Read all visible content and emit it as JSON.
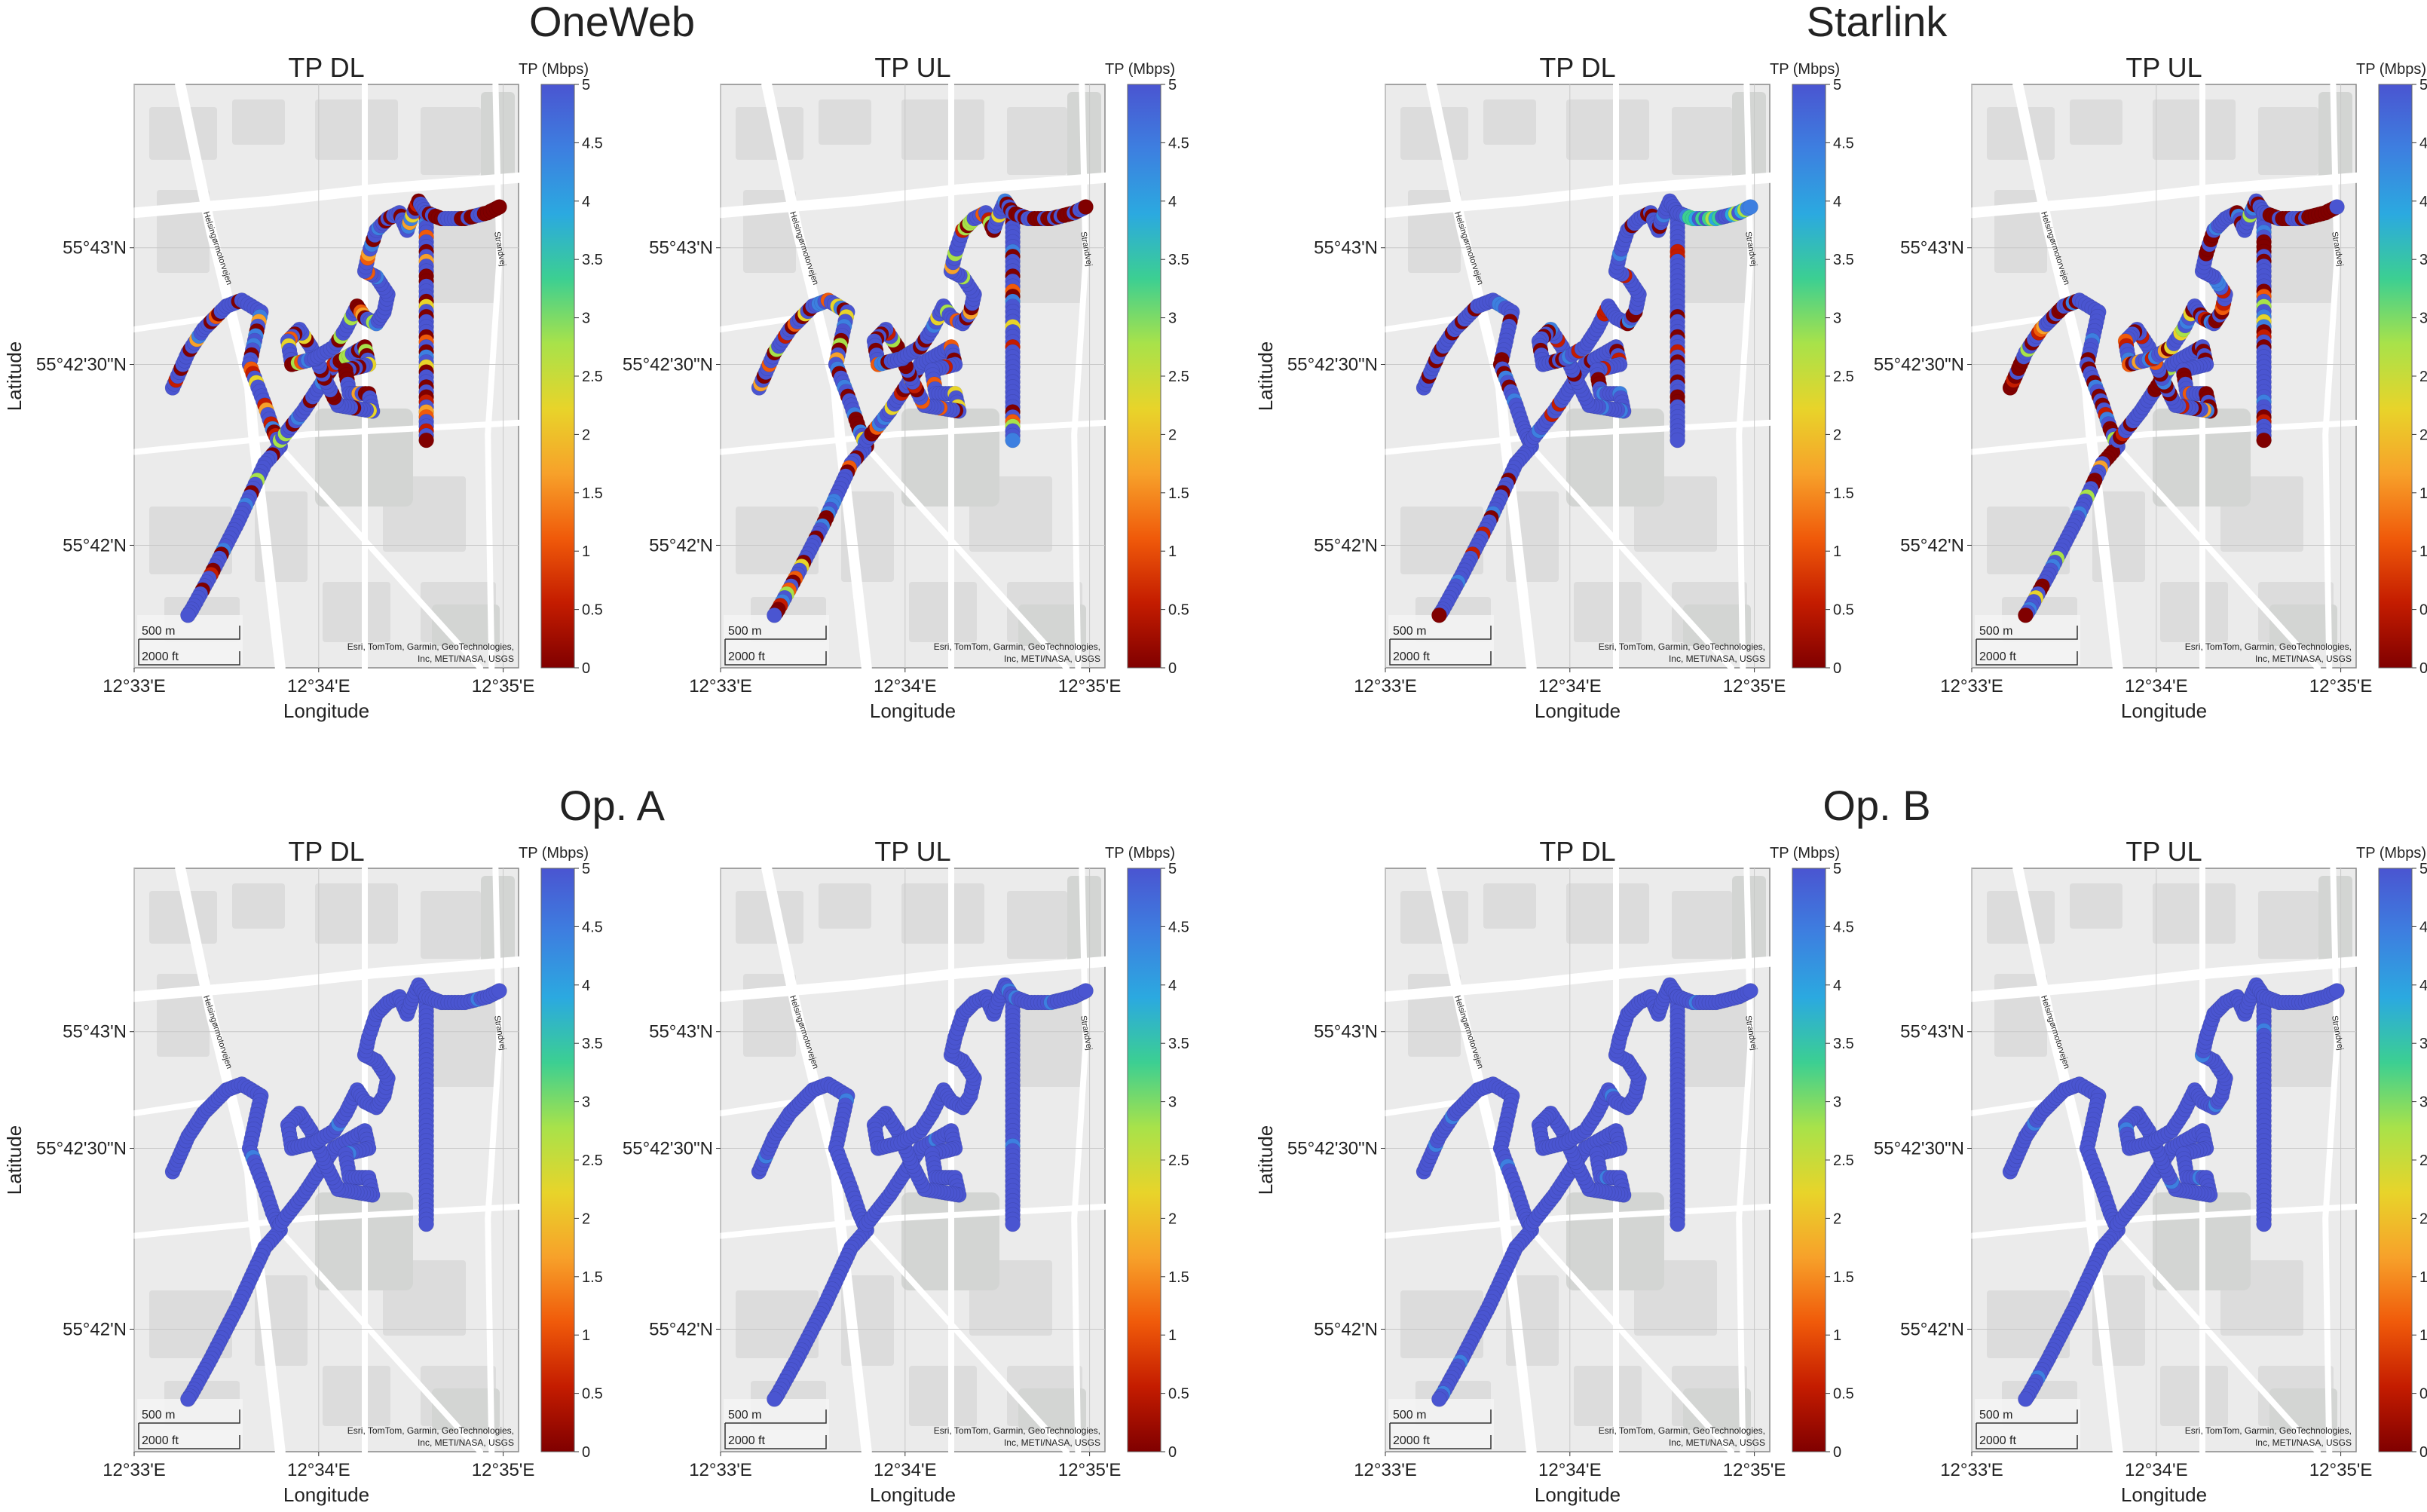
{
  "groups": [
    {
      "title": "OneWeb"
    },
    {
      "title": "Starlink"
    },
    {
      "title": "Op. A"
    },
    {
      "title": "Op. B"
    }
  ],
  "panel_titles": {
    "dl": "TP DL",
    "ul": "TP UL"
  },
  "axes": {
    "xlabel": "Longitude",
    "ylabel": "Latitude",
    "xticks": [
      "12°33'E",
      "12°34'E",
      "12°35'E"
    ],
    "yticks": [
      "55°43'N",
      "55°42'30\"N",
      "55°42'N"
    ]
  },
  "colorbar": {
    "label": "TP (Mbps)",
    "ticks": [
      "5",
      "4.5",
      "4",
      "3.5",
      "3",
      "2.5",
      "2",
      "1.5",
      "1",
      "0.5",
      "0"
    ],
    "min": 0,
    "max": 5,
    "colors": [
      "#800000",
      "#c41c00",
      "#f05a0a",
      "#f7a12a",
      "#e8d42a",
      "#a8e24a",
      "#3ccf92",
      "#2ba9e0",
      "#3d7fe0",
      "#4a55d1"
    ]
  },
  "basemap": {
    "scale_m": "500 m",
    "scale_ft": "2000 ft",
    "attribution_1": "Esri, TomTom, Garmin, GeoTechnologies,",
    "attribution_2": "Inc, METI/NASA, USGS",
    "street_1": "Helsingørmotorvejen",
    "street_2": "Strandvej",
    "colors": {
      "land": "#ebebeb",
      "block": "#dcdcdc",
      "road": "#ffffff",
      "park": "#d3d5d3"
    }
  },
  "map_data": {
    "route": [
      [
        0.1,
        0.52
      ],
      [
        0.14,
        0.46
      ],
      [
        0.18,
        0.42
      ],
      [
        0.24,
        0.38
      ],
      [
        0.28,
        0.37
      ],
      [
        0.33,
        0.39
      ],
      [
        0.3,
        0.48
      ],
      [
        0.34,
        0.55
      ],
      [
        0.36,
        0.59
      ],
      [
        0.38,
        0.62
      ],
      [
        0.34,
        0.65
      ],
      [
        0.27,
        0.75
      ],
      [
        0.2,
        0.84
      ],
      [
        0.15,
        0.9
      ],
      [
        0.14,
        0.91
      ]
    ],
    "loop": [
      [
        0.38,
        0.61
      ],
      [
        0.44,
        0.56
      ],
      [
        0.52,
        0.48
      ],
      [
        0.6,
        0.45
      ],
      [
        0.61,
        0.48
      ],
      [
        0.55,
        0.49
      ],
      [
        0.56,
        0.53
      ],
      [
        0.61,
        0.53
      ],
      [
        0.62,
        0.56
      ],
      [
        0.53,
        0.55
      ],
      [
        0.5,
        0.51
      ],
      [
        0.46,
        0.45
      ],
      [
        0.43,
        0.42
      ],
      [
        0.4,
        0.44
      ],
      [
        0.41,
        0.48
      ],
      [
        0.47,
        0.47
      ],
      [
        0.52,
        0.45
      ],
      [
        0.55,
        0.42
      ],
      [
        0.58,
        0.38
      ],
      [
        0.6,
        0.4
      ],
      [
        0.63,
        0.41
      ],
      [
        0.65,
        0.39
      ],
      [
        0.66,
        0.36
      ],
      [
        0.63,
        0.33
      ],
      [
        0.6,
        0.32
      ],
      [
        0.61,
        0.29
      ],
      [
        0.63,
        0.25
      ],
      [
        0.66,
        0.23
      ],
      [
        0.69,
        0.22
      ],
      [
        0.71,
        0.25
      ],
      [
        0.72,
        0.23
      ],
      [
        0.74,
        0.2
      ],
      [
        0.76,
        0.22
      ],
      [
        0.76,
        0.32
      ],
      [
        0.76,
        0.45
      ],
      [
        0.76,
        0.57
      ],
      [
        0.76,
        0.61
      ]
    ],
    "branch": [
      [
        0.76,
        0.22
      ],
      [
        0.8,
        0.23
      ],
      [
        0.86,
        0.23
      ],
      [
        0.92,
        0.22
      ],
      [
        0.95,
        0.21
      ]
    ]
  },
  "chart_data": [
    {
      "group": "OneWeb",
      "panel": "TP DL",
      "type": "map-scatter",
      "value_profile": "mixed-low",
      "overall_level": 3.2
    },
    {
      "group": "OneWeb",
      "panel": "TP UL",
      "type": "map-scatter",
      "value_profile": "mixed-low",
      "overall_level": 3.0
    },
    {
      "group": "Starlink",
      "panel": "TP DL",
      "type": "map-scatter",
      "value_profile": "mostly-high",
      "overall_level": 4.1
    },
    {
      "group": "Starlink",
      "panel": "TP UL",
      "type": "map-scatter",
      "value_profile": "mixed-low",
      "overall_level": 3.1
    },
    {
      "group": "Op. A",
      "panel": "TP DL",
      "type": "map-scatter",
      "value_profile": "saturated",
      "overall_level": 5
    },
    {
      "group": "Op. A",
      "panel": "TP UL",
      "type": "map-scatter",
      "value_profile": "saturated",
      "overall_level": 5
    },
    {
      "group": "Op. B",
      "panel": "TP DL",
      "type": "map-scatter",
      "value_profile": "saturated",
      "overall_level": 5
    },
    {
      "group": "Op. B",
      "panel": "TP UL",
      "type": "map-scatter",
      "value_profile": "saturated",
      "overall_level": 5
    }
  ]
}
